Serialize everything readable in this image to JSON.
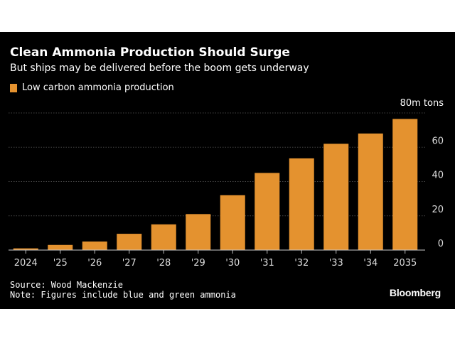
{
  "colors": {
    "background": "#000000",
    "bar": "#E4922F",
    "text": "#ffffff",
    "grid": "#444444",
    "tick": "#dddddd"
  },
  "header": {
    "title": "Clean Ammonia Production Should Surge",
    "subtitle": "But ships may be delivered before the boom gets underway"
  },
  "footer": {
    "source": "Source: Wood Mackenzie",
    "note": "Note: Figures include blue and green ammonia",
    "brand": "Bloomberg"
  },
  "chart_data": {
    "type": "bar",
    "title": "Clean Ammonia Production Should Surge",
    "subtitle": "But ships may be delivered before the boom gets underway",
    "categories": [
      "2024",
      "'25",
      "'26",
      "'27",
      "'28",
      "'29",
      "'30",
      "'31",
      "'32",
      "'33",
      "'34",
      "2035"
    ],
    "series": [
      {
        "name": "Low carbon ammonia production",
        "values": [
          1,
          3,
          5,
          9.5,
          15,
          21,
          32,
          45,
          53.5,
          62,
          68,
          76.5
        ]
      }
    ],
    "y_unit_label": "80m tons",
    "yticks": [
      "0",
      "20",
      "40",
      "60"
    ],
    "ylim": [
      0,
      80
    ],
    "grid": true,
    "axis_side": "right",
    "legend_position": "top-left"
  }
}
